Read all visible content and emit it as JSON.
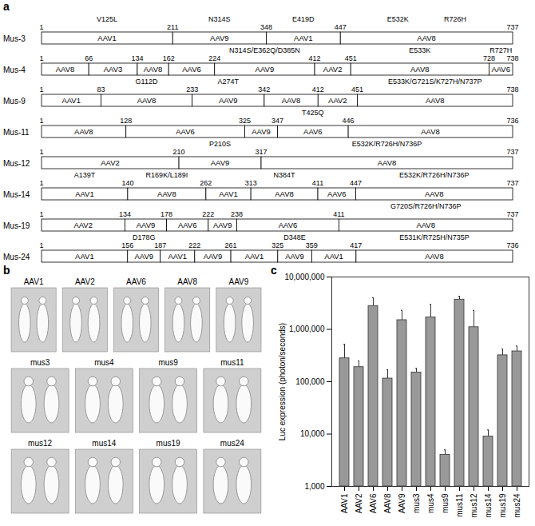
{
  "panels": [
    {
      "label": "a",
      "type": "diagram",
      "rows": [
        {
          "name": "Mus-3",
          "boundaries": [
            1,
            211,
            348,
            447,
            737
          ],
          "segments": [
            "AAV1",
            "AAV9",
            "AAV1",
            "AAV8"
          ],
          "mutations": [
            {
              "text": "V125L",
              "segment": 0
            },
            {
              "text": "N314S",
              "segment": 1
            },
            {
              "text": "E419D",
              "segment": 2
            },
            {
              "text": "E532K",
              "segment": 3
            },
            {
              "text": "R726H",
              "segment": 3
            }
          ]
        },
        {
          "name": "Mus-4",
          "boundaries": [
            1,
            66,
            134,
            162,
            224,
            412,
            451,
            728,
            738
          ],
          "segments": [
            "AAV8",
            "AAV3",
            "AAV8",
            "AAV6",
            "AAV9",
            "AAV2",
            "AAV8",
            "AAV6"
          ],
          "mutations": [
            {
              "text": "N314S/E362Q/D385N",
              "segment": 4
            },
            {
              "text": "E533K",
              "segment": 6
            },
            {
              "text": "R727H",
              "segment": 7
            }
          ]
        },
        {
          "name": "Mus-9",
          "boundaries": [
            1,
            83,
            233,
            342,
            412,
            451,
            738
          ],
          "segments": [
            "AAV1",
            "AAV8",
            "AAV9",
            "AAV8",
            "AAV2",
            "AAV8"
          ],
          "mutations": [
            {
              "text": "G112D",
              "segment": 1
            },
            {
              "text": "A274T",
              "segment": 2
            },
            {
              "text": "E533K/G721S/K727H/N737P",
              "segment": 5
            }
          ]
        },
        {
          "name": "Mus-11",
          "boundaries": [
            1,
            128,
            325,
            347,
            446,
            736
          ],
          "segments": [
            "AAV8",
            "AAV6",
            "AAV9",
            "AAV6",
            "AAV8"
          ],
          "mutations": [
            {
              "text": "T425Q",
              "segment": 3
            }
          ]
        },
        {
          "name": "Mus-12",
          "boundaries": [
            1,
            210,
            317,
            737
          ],
          "segments": [
            "AAV2",
            "AAV9",
            "AAV8"
          ],
          "mutations": [
            {
              "text": "P210S",
              "segment": 1
            },
            {
              "text": "E532K/R726H/N736P",
              "segment": 2
            }
          ]
        },
        {
          "name": "Mus-14",
          "boundaries": [
            1,
            140,
            262,
            313,
            411,
            447,
            737
          ],
          "segments": [
            "AAV1",
            "AAV8",
            "AAV1",
            "AAV8",
            "AAV6",
            "AAV8"
          ],
          "mutations": [
            {
              "text": "A139T",
              "segment": 0
            },
            {
              "text": "R169K/L189I",
              "segment": 1
            },
            {
              "text": "N384T",
              "segment": 3
            },
            {
              "text": "E532K/R726H/N736P",
              "segment": 5
            }
          ]
        },
        {
          "name": "Mus-19",
          "boundaries": [
            1,
            134,
            178,
            222,
            238,
            411,
            737
          ],
          "segments": [
            "AAV2",
            "AAV9",
            "AAV6",
            "AAV9",
            "AAV6",
            "AAV8"
          ],
          "mutations": [
            {
              "text": "G720S/R726H/N736P",
              "segment": 5
            }
          ]
        },
        {
          "name": "Mus-24",
          "boundaries": [
            1,
            156,
            187,
            222,
            261,
            325,
            359,
            417,
            736
          ],
          "segments": [
            "AAV1",
            "AAV9",
            "AAV1",
            "AAV9",
            "AAV1",
            "AAV9",
            "AAV1",
            "AAV8"
          ],
          "mutations": [
            {
              "text": "D178G",
              "segment": 1
            },
            {
              "text": "D348E",
              "segment": 5
            },
            {
              "text": "E531K/R725H/N735P",
              "segment": 7
            }
          ]
        }
      ]
    },
    {
      "label": "b",
      "type": "images",
      "rows": [
        [
          "AAV1",
          "AAV2",
          "AAV6",
          "AAV8",
          "AAV9"
        ],
        [
          "mus3",
          "mus4",
          "mus9",
          "mus11"
        ],
        [
          "mus12",
          "mus14",
          "mus19",
          "mus24"
        ]
      ]
    }
  ],
  "chart_data": {
    "panel_label": "c",
    "type": "bar",
    "log": "y",
    "color": "#999999",
    "ylabel": "Luc expression (photon/seconds)",
    "categories": [
      "AAV1",
      "AAV2",
      "AAV6",
      "AAV8",
      "AAV9",
      "mus3",
      "mus4",
      "mus9",
      "mus11",
      "mus12",
      "mus14",
      "mus19",
      "mus24"
    ],
    "values": [
      280000,
      190000,
      2800000,
      115000,
      1500000,
      150000,
      1700000,
      4000,
      3700000,
      1100000,
      9000,
      320000,
      380000
    ],
    "errors": [
      240000,
      60000,
      1200000,
      55000,
      800000,
      30000,
      1300000,
      1000,
      600000,
      1200000,
      3000,
      100000,
      100000
    ],
    "ylim": [
      1000,
      10000000
    ],
    "yticks": [
      {
        "value": 1000,
        "label": "1,000"
      },
      {
        "value": 10000,
        "label": "10,000"
      },
      {
        "value": 100000,
        "label": "100,000"
      },
      {
        "value": 1000000,
        "label": "1,000,000"
      },
      {
        "value": 10000000,
        "label": "10,000,000"
      }
    ]
  }
}
